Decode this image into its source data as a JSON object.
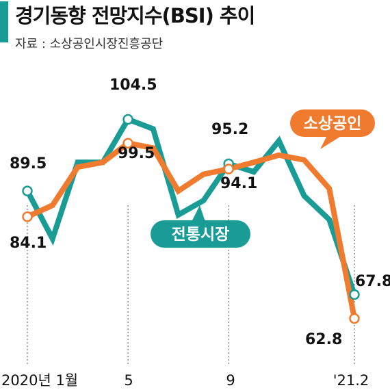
{
  "header": {
    "title": "경기동향 전망지수(BSI) 추이",
    "source": "자료 : 소상공인시장진흥공단"
  },
  "chart_data": {
    "type": "line",
    "title": "경기동향 전망지수(BSI) 추이",
    "x": [
      "2020-01",
      "2020-02",
      "2020-03",
      "2020-04",
      "2020-05",
      "2020-06",
      "2020-07",
      "2020-08",
      "2020-09",
      "2020-10",
      "2020-11",
      "2020-12",
      "2021-01",
      "2021-02"
    ],
    "x_tick_labels": [
      "2020년 1월",
      "5",
      "9",
      "'21.2"
    ],
    "series": [
      {
        "name": "전통시장",
        "color": "#1a9c96",
        "values": [
          89.5,
          79.5,
          95.5,
          95.5,
          104.5,
          102.5,
          84.5,
          87.5,
          95.2,
          93.5,
          100.0,
          88.5,
          83.5,
          67.8
        ],
        "labeled_points": [
          {
            "index": 0,
            "label": "89.5"
          },
          {
            "index": 4,
            "label": "104.5"
          },
          {
            "index": 8,
            "label": "95.2"
          },
          {
            "index": 13,
            "label": "67.8"
          }
        ]
      },
      {
        "name": "소상공인",
        "color": "#f07a2e",
        "values": [
          84.1,
          86.5,
          94.5,
          95.5,
          99.5,
          98.5,
          89.5,
          93.0,
          94.1,
          95.5,
          97.0,
          96.0,
          90.0,
          62.8
        ],
        "labeled_points": [
          {
            "index": 0,
            "label": "84.1"
          },
          {
            "index": 4,
            "label": "99.5"
          },
          {
            "index": 8,
            "label": "94.1"
          },
          {
            "index": 13,
            "label": "62.8"
          }
        ]
      }
    ],
    "ylim": [
      60,
      108
    ],
    "grid": false,
    "legend": "inline labels"
  }
}
